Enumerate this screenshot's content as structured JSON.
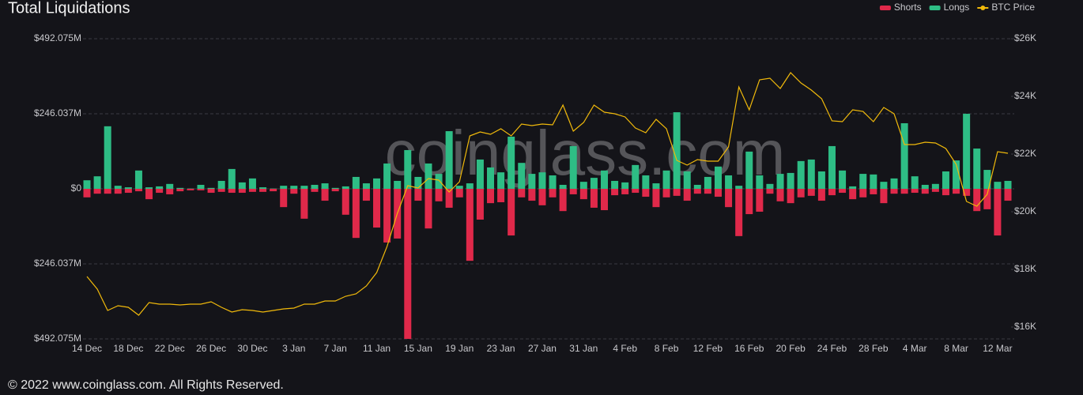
{
  "chart_data": {
    "type": "bar",
    "title": "Total Liquidations",
    "watermark": "coinglass.com",
    "footer": "© 2022 www.coinglass.com. All Rights Reserved.",
    "categories": [
      "14 Dec",
      null,
      null,
      null,
      "18 Dec",
      null,
      null,
      null,
      "22 Dec",
      null,
      null,
      null,
      "26 Dec",
      null,
      null,
      null,
      "30 Dec",
      null,
      null,
      null,
      "3 Jan",
      null,
      null,
      null,
      "7 Jan",
      null,
      null,
      null,
      "11 Jan",
      null,
      null,
      null,
      "15 Jan",
      null,
      null,
      null,
      "19 Jan",
      null,
      null,
      null,
      "23 Jan",
      null,
      null,
      null,
      "27 Jan",
      null,
      null,
      null,
      "31 Jan",
      null,
      null,
      null,
      "4 Feb",
      null,
      null,
      null,
      "8 Feb",
      null,
      null,
      null,
      "12 Feb",
      null,
      null,
      null,
      "16 Feb",
      null,
      null,
      null,
      "20 Feb",
      null,
      null,
      null,
      "24 Feb",
      null,
      null,
      null,
      "28 Feb",
      null,
      null,
      null,
      "4 Mar",
      null,
      null,
      null,
      "8 Mar",
      null,
      null,
      null,
      "12 Mar",
      null
    ],
    "ylim": [
      -492.075,
      492.075
    ],
    "yticks": [
      {
        "value": -492.075,
        "label": "$492.075M"
      },
      {
        "value": -246.037,
        "label": "$246.037M"
      },
      {
        "value": 0,
        "label": "$0"
      },
      {
        "value": 246.037,
        "label": "$246.037M"
      },
      {
        "value": 492.075,
        "label": "$492.075M"
      }
    ],
    "y2lim": [
      15589,
      26000
    ],
    "y2ticks": [
      {
        "value": 16000,
        "label": "$16K"
      },
      {
        "value": 18000,
        "label": "$18K"
      },
      {
        "value": 20000,
        "label": "$20K"
      },
      {
        "value": 22000,
        "label": "$22K"
      },
      {
        "value": 24000,
        "label": "$24K"
      },
      {
        "value": 26000,
        "label": "$26K"
      }
    ],
    "grid": true,
    "legend": "top-right",
    "series": [
      {
        "name": "Shorts",
        "color": "#e0294a",
        "values": [
          -28,
          -16,
          -16,
          -16,
          -13,
          -8,
          -34,
          -13,
          -18,
          -8,
          -5,
          -5,
          -13,
          -10,
          -13,
          -13,
          -10,
          -10,
          -8,
          -60,
          -16,
          -98,
          -10,
          -39,
          -8,
          -85,
          -161,
          -39,
          -127,
          -176,
          -163,
          -492,
          -39,
          -130,
          -41,
          -62,
          -28,
          -236,
          -101,
          -47,
          -44,
          -153,
          -28,
          -39,
          -54,
          -28,
          -73,
          -18,
          -34,
          -62,
          -70,
          -21,
          -18,
          -13,
          -26,
          -60,
          -28,
          -23,
          -39,
          -16,
          -16,
          -26,
          -60,
          -155,
          -83,
          -75,
          -16,
          -41,
          -47,
          -28,
          -23,
          -39,
          -21,
          -13,
          -34,
          -28,
          -18,
          -47,
          -16,
          -16,
          -13,
          -16,
          -10,
          -21,
          -16,
          -23,
          -73,
          -67,
          -153,
          -39
        ]
      },
      {
        "name": "Longs",
        "color": "#2ebd85",
        "values": [
          28,
          41,
          205,
          10,
          5,
          60,
          5,
          8,
          16,
          3,
          1,
          13,
          3,
          26,
          65,
          21,
          34,
          5,
          1,
          10,
          10,
          10,
          13,
          18,
          3,
          8,
          39,
          18,
          34,
          83,
          26,
          127,
          39,
          83,
          49,
          189,
          10,
          18,
          96,
          70,
          54,
          171,
          85,
          49,
          54,
          44,
          13,
          140,
          23,
          36,
          60,
          26,
          21,
          78,
          44,
          18,
          60,
          251,
          57,
          13,
          39,
          73,
          44,
          10,
          122,
          44,
          16,
          49,
          52,
          91,
          96,
          57,
          140,
          60,
          8,
          49,
          47,
          23,
          34,
          215,
          41,
          13,
          16,
          57,
          93,
          246,
          132,
          62,
          23,
          26
        ]
      },
      {
        "name": "BTC Price",
        "color": "#f0b90b",
        "type": "line",
        "axis": "y2",
        "values": [
          17753,
          17315,
          16575,
          16740,
          16685,
          16411,
          16849,
          16795,
          16795,
          16767,
          16795,
          16795,
          16877,
          16685,
          16521,
          16603,
          16575,
          16521,
          16575,
          16630,
          16658,
          16795,
          16795,
          16904,
          16904,
          17068,
          17151,
          17425,
          17890,
          18795,
          19945,
          20904,
          20822,
          21151,
          21096,
          20685,
          21041,
          22630,
          22767,
          22685,
          22877,
          22630,
          23041,
          22986,
          23041,
          23014,
          23699,
          22795,
          23096,
          23699,
          23452,
          23397,
          23288,
          22904,
          22740,
          23205,
          22877,
          21781,
          21616,
          21808,
          21753,
          21753,
          22247,
          24329,
          23534,
          24575,
          24630,
          24274,
          24822,
          24466,
          24219,
          23918,
          23151,
          23123,
          23534,
          23479,
          23123,
          23616,
          23397,
          22329,
          22329,
          22411,
          22384,
          22192,
          21644,
          20356,
          20192,
          20603,
          22082,
          22027
        ]
      }
    ]
  }
}
